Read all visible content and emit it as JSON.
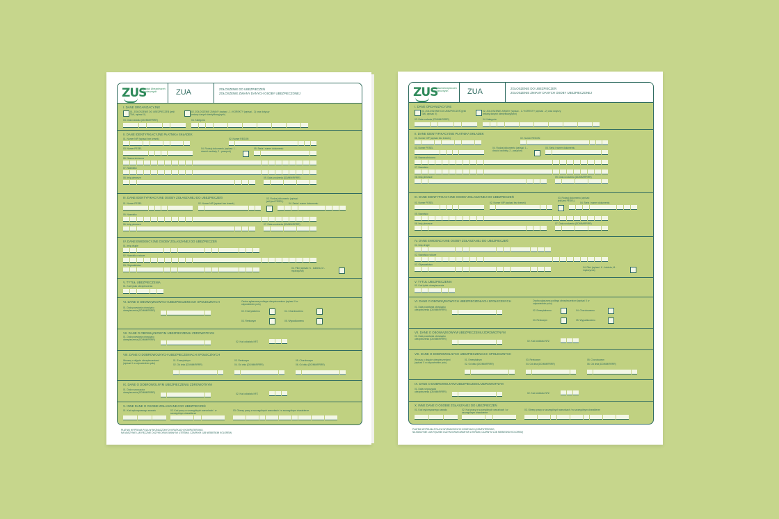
{
  "form": {
    "logo_mark": "ZUS",
    "logo_text": "Zakład Ubezpieczeń Społecznych",
    "code": "ZUA",
    "title_line1": "ZGŁOSZENIE DO UBEZPIECZEŃ",
    "title_line2": "ZGŁOSZENIE ZMIANY DANYCH OSOBY UBEZPIECZONEJ",
    "footer_line1": "PŁATNIK WYPEŁNIA POLA W WYZNACZONYCH KRATKACH (KOMPUTEROWO,",
    "footer_line2": "NA MASZYNIE LUB RĘCZNIE DUŻYMI DRUKOWANYMI LITERAMI, CZARNYM LUB NIEBIESKIM KOLOREM)"
  },
  "sections": {
    "s1": {
      "title": "I. DANE ORGANIZACYJNE",
      "f01": "01. ZGŁOSZENIE DO UBEZPIECZEŃ (jeśli TAK, wpisać X)",
      "f02": "02. ZGŁOSZENIE ZMIANY (wpisać - 1 / KOREKTY (wpisać - 2) oraz dotyczy zmiany danych identyfikacyjnych)",
      "f03": "03. Data nadania (DD/MM/RRRR)",
      "f04": "04. Kategoria"
    },
    "s2": {
      "title": "II. DANE IDENTYFIKACYJNE PŁATNIKA SKŁADEK",
      "f01": "01. Numer NIP (wpisać bez kresek)",
      "f02": "02. Numer REGON",
      "f03": "03. Numer PESEL",
      "f04": "04. Rodzaj dokumentu (wpisać: 1 - dowód osobisty, 2 - paszport)",
      "f05": "05. Seria i numer dokumentu",
      "f06": "06. Nazwa skrócona",
      "f07": "07. Nazwisko",
      "f08": "08. Imię pierwsze",
      "f09": "09. Data urodzenia (DD/MM/RRRR)"
    },
    "s3": {
      "title": "III. DANE IDENTYFIKACYJNE OSOBY ZGŁASZANEJ DO UBEZPIECZEŃ",
      "f01": "01. Numer PESEL",
      "f02": "02. Numer NIP (wpisać bez kresek)",
      "f03": "03. Rodzaj dokumentu (wpisać: jeśli jest PESEL)",
      "f04": "04. Seria i numer dokumentu",
      "f05": "05. Nazwisko",
      "f06": "06. Imię pierwsze",
      "f07": "07. Data urodzenia (DD/MM/RRRR)"
    },
    "s4": {
      "title": "IV. DANE EWIDENCYJNE OSOBY ZGŁASZANEJ DO UBEZPIECZEŃ",
      "f01": "01. Imię drugie",
      "f02": "02. Nazwisko rodowe",
      "f03": "03. Obywatelstwo",
      "f04": "04. Płeć (wpisać: K - kobieta, M - mężczyzna)"
    },
    "s5": {
      "title": "V. TYTUŁ UBEZPIECZENIA",
      "f01": "01. Kod tytułu ubezpieczenia"
    },
    "s6": {
      "title": "VI. DANE O OBOWIĄZKOWYCH UBEZPIECZENIACH SPOŁECZNYCH",
      "f01": "01. Data powstania obowiązku ubezpieczenia (DD/MM/RRRR)",
      "note": "Osoba zgłaszana podlega ubezpieczeniom (wpisać X w odpowiednim polu)",
      "f02": "02. Emerytalnemu",
      "f03": "03. Rentowym",
      "f04": "04. Chorobowemu",
      "f05": "05. Wypadkowemu"
    },
    "s7": {
      "title": "VII. DANE O OBOWIĄZKOWYM UBEZPIECZENIU ZDROWOTNYM",
      "f01": "01. Data powstania obowiązku ubezpieczenia (DD/MM/RRRR)",
      "f02": "02. Kod oddziału NFZ"
    },
    "s8": {
      "title": "VIII. DANE O DOBROWOLNYCH UBEZPIECZENIACH SPOŁECZNYCH",
      "note": "Wnoszę o objęcie ubezpieczeniami (wpisać X w odpowiednim polu)",
      "f01": "01. Emerytalnym",
      "f02": "02. Od dnia (DD/MM/RRRR)",
      "f03": "03. Rentowym",
      "f04": "04. Od dnia (DD/MM/RRRR)",
      "f05": "05. Chorobowym",
      "f06": "06. Od dnia (DD/MM/RRRR)"
    },
    "s9": {
      "title": "IX. DANE O DOBROWOLNYM UBEZPIECZENIU ZDROWOTNYM",
      "f01": "01. Data rozpoczęcia ubezpieczenia (DD/MM/RRRR)",
      "f02": "02. Kod oddziału NFZ"
    },
    "s10": {
      "title": "X. INNE DANE O OSOBIE ZGŁASZANEJ DO UBEZPIECZEŃ",
      "f01": "01. Kod wykonywanego zawodu",
      "f02": "02. Kod pracy w szczególnych warunkach / w szczególnym charakterze",
      "f03": "03. Okresy pracy w szczególnych warunkach / w szczególnym charakterze"
    }
  },
  "colors": {
    "background": "#c6d68c",
    "paper": "#ffffff",
    "form_fill": "#c0d181",
    "ink": "#2f6b60",
    "cell": "#f3f7e6",
    "logo": "#2f8a5a"
  }
}
